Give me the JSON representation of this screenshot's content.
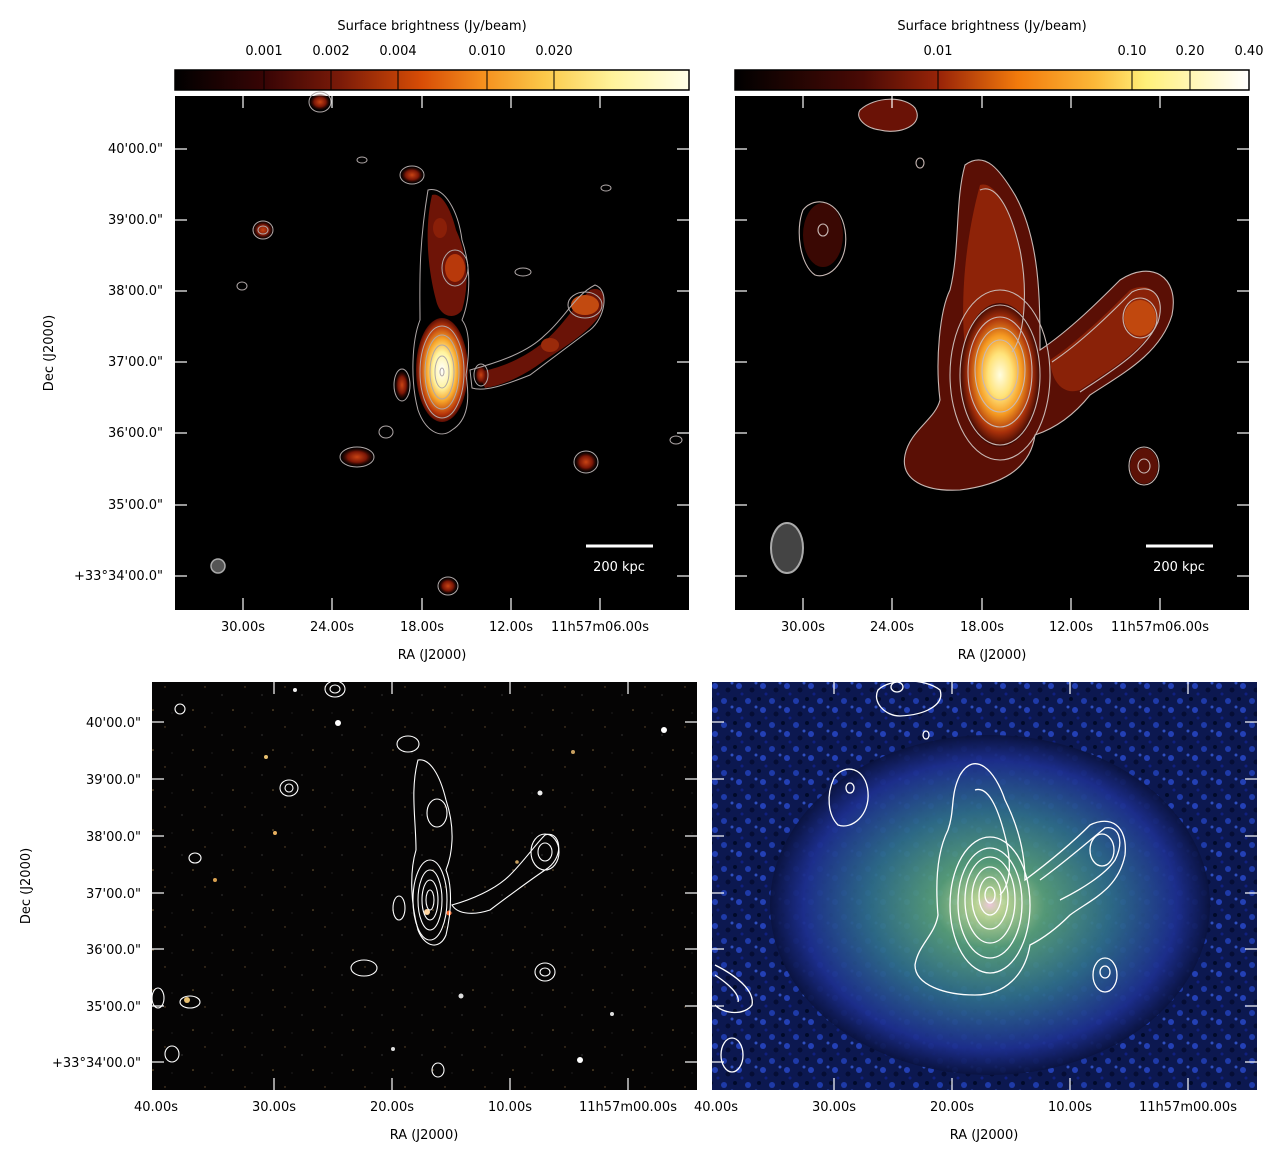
{
  "panels": [
    {
      "id": "top-left",
      "colorbar_label": "Surface brightness (Jy/beam)",
      "colorbar_ticks": [
        "0.001",
        "0.002",
        "0.004",
        "0.010",
        "0.020"
      ],
      "ra_ticks": [
        "30.00s",
        "24.00s",
        "18.00s",
        "12.00s",
        "11h57m06.00s"
      ],
      "dec_ticks": [
        "40'00.0\"",
        "39'00.0\"",
        "38'00.0\"",
        "37'00.0\"",
        "36'00.0\"",
        "35'00.0\"",
        "+33°34'00.0\""
      ],
      "xlabel": "RA (J2000)",
      "ylabel": "Dec (J2000)",
      "scalebar": "200 kpc"
    },
    {
      "id": "top-right",
      "colorbar_label": "Surface brightness (Jy/beam)",
      "colorbar_ticks": [
        "0.01",
        "0.10",
        "0.20",
        "0.40"
      ],
      "ra_ticks": [
        "30.00s",
        "24.00s",
        "18.00s",
        "12.00s",
        "11h57m06.00s"
      ],
      "xlabel": "RA (J2000)",
      "scalebar": "200 kpc"
    },
    {
      "id": "bottom-left",
      "ra_ticks": [
        "40.00s",
        "30.00s",
        "20.00s",
        "10.00s",
        "11h57m00.00s"
      ],
      "dec_ticks": [
        "40'00.0\"",
        "39'00.0\"",
        "38'00.0\"",
        "37'00.0\"",
        "36'00.0\"",
        "35'00.0\"",
        "+33°34'00.0\""
      ],
      "xlabel": "RA (J2000)",
      "ylabel": "Dec (J2000)"
    },
    {
      "id": "bottom-right",
      "ra_ticks": [
        "40.00s",
        "30.00s",
        "20.00s",
        "10.00s",
        "11h57m00.00s"
      ],
      "xlabel": "RA (J2000)"
    }
  ],
  "colors": {
    "background": "#000000",
    "contour_grey": "#b0a8a8",
    "contour_white": "#ffffff",
    "xray_blue": "#1b2f8a",
    "xray_green": "#3f8f6a"
  }
}
